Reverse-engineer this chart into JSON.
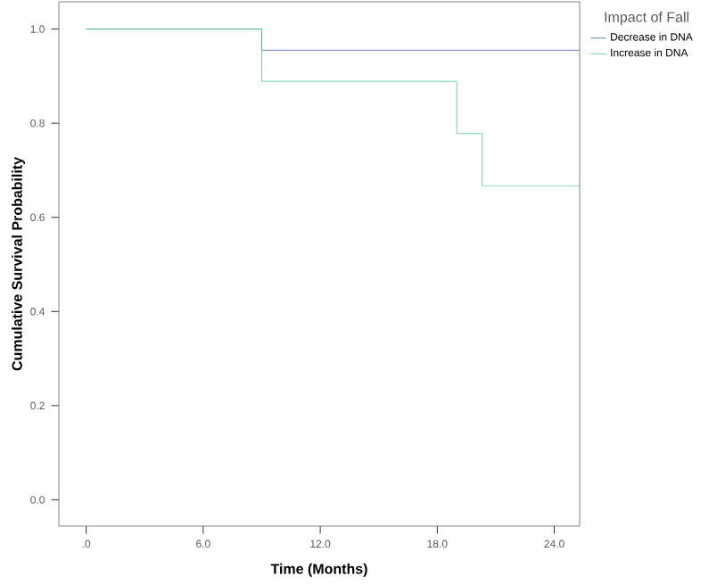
{
  "chart_data": {
    "type": "step",
    "xlabel": "Time (Months)",
    "ylabel": "Cumulative Survival Probability",
    "legend_title": "Impact of Fall",
    "legend": "top right",
    "grid": false,
    "xlim": [
      -1.4,
      25.3
    ],
    "xticks": [
      {
        "value": 0,
        "label": ".0"
      },
      {
        "value": 6,
        "label": "6.0"
      },
      {
        "value": 12,
        "label": "12.0"
      },
      {
        "value": 18,
        "label": "18.0"
      },
      {
        "value": 24,
        "label": "24.0"
      }
    ],
    "ylim": [
      -0.056,
      1.058
    ],
    "yticks": [
      {
        "value": 0,
        "label": "0.0"
      },
      {
        "value": 0.2,
        "label": "0.2"
      },
      {
        "value": 0.4,
        "label": "0.4"
      },
      {
        "value": 0.6,
        "label": "0.6"
      },
      {
        "value": 0.8,
        "label": "0.8"
      },
      {
        "value": 1,
        "label": "1.0"
      }
    ],
    "series": [
      {
        "name": "Decrease in DNA",
        "color": "#4062b8",
        "x": [
          0,
          9,
          25.3
        ],
        "values": [
          1.0,
          0.955,
          0.955
        ]
      },
      {
        "name": "Increase in DNA",
        "color": "#4cc98a",
        "x": [
          0,
          9,
          19,
          20.3,
          25.3
        ],
        "values": [
          1.0,
          0.889,
          0.778,
          0.667,
          0.667
        ]
      }
    ]
  }
}
